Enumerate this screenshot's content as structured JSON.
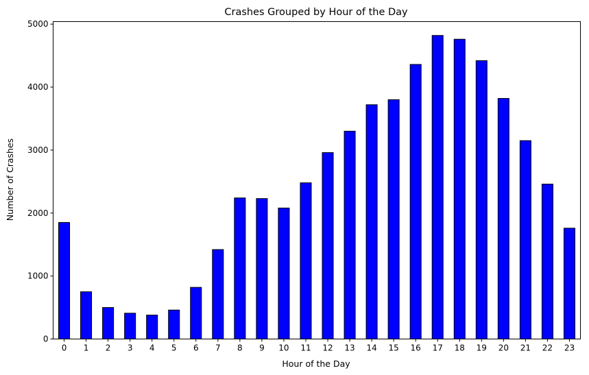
{
  "chart_data": {
    "type": "bar",
    "title": "Crashes Grouped by Hour of the Day",
    "xlabel": "Hour of the Day",
    "ylabel": "Number of Crashes",
    "categories": [
      "0",
      "1",
      "2",
      "3",
      "4",
      "5",
      "6",
      "7",
      "8",
      "9",
      "10",
      "11",
      "12",
      "13",
      "14",
      "15",
      "16",
      "17",
      "18",
      "19",
      "20",
      "21",
      "22",
      "23"
    ],
    "values": [
      1850,
      750,
      500,
      410,
      380,
      460,
      820,
      1420,
      2240,
      2230,
      2080,
      2480,
      2960,
      3300,
      3720,
      3800,
      4360,
      4820,
      4760,
      4420,
      3820,
      3150,
      2460,
      1760
    ],
    "ylim": [
      0,
      5040
    ],
    "yticks": [
      0,
      1000,
      2000,
      3000,
      4000,
      5000
    ],
    "grid": false,
    "legend": "none",
    "bar_color": "#0000ff",
    "edge_color": "#000000"
  }
}
